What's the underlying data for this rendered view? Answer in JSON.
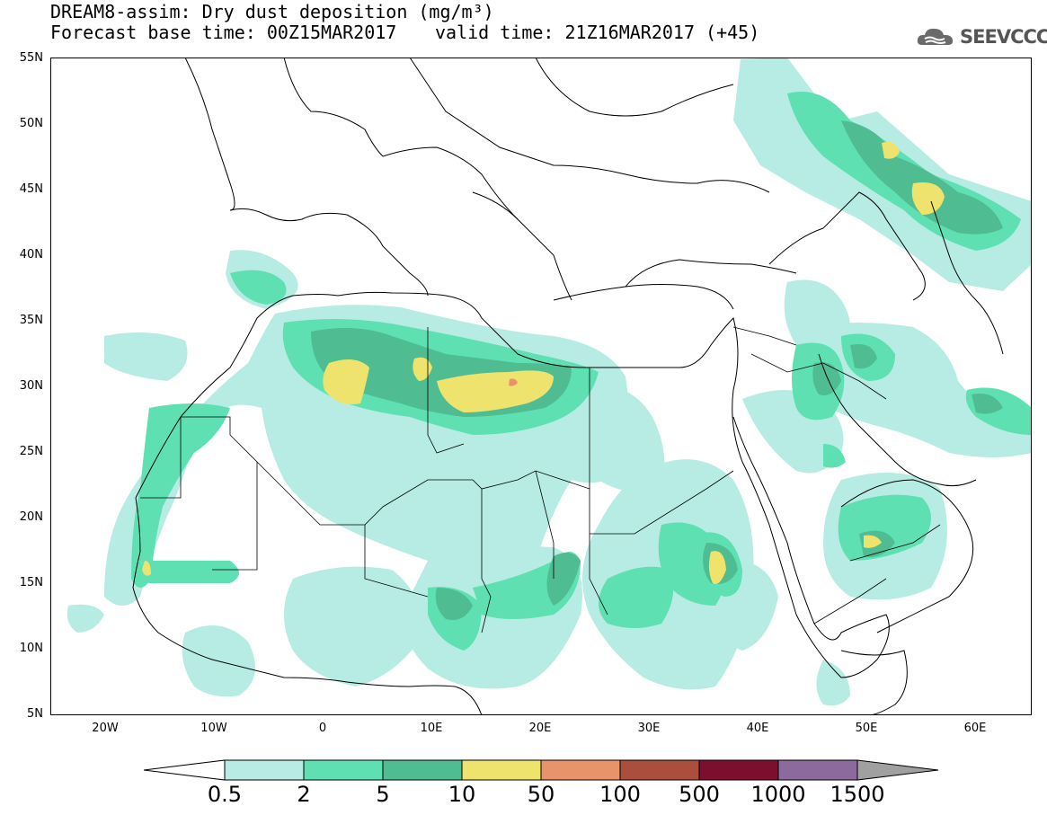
{
  "header": {
    "title": "DREAM8-assim: Dry dust deposition (mg/m³)",
    "base_time": "Forecast base time: 00Z15MAR2017",
    "valid_time": "valid time: 21Z16MAR2017 (+45)"
  },
  "logo": {
    "text": "SEEVCCC",
    "icon": "cloud-icon"
  },
  "axes": {
    "lat_labels": [
      "55N",
      "50N",
      "45N",
      "40N",
      "35N",
      "30N",
      "25N",
      "20N",
      "15N",
      "10N",
      "5N"
    ],
    "lon_labels": [
      "20W",
      "10W",
      "0",
      "10E",
      "20E",
      "30E",
      "40E",
      "50E",
      "60E"
    ]
  },
  "legend": {
    "levels": [
      "0.5",
      "2",
      "5",
      "10",
      "50",
      "100",
      "500",
      "1000",
      "1500"
    ],
    "colors": [
      "#ffffff",
      "#b6ece3",
      "#5ee0b3",
      "#4fbc92",
      "#eee36c",
      "#e89369",
      "#ac4e3e",
      "#7b0f2d",
      "#8c6a9d",
      "#a0a0a0"
    ]
  }
}
